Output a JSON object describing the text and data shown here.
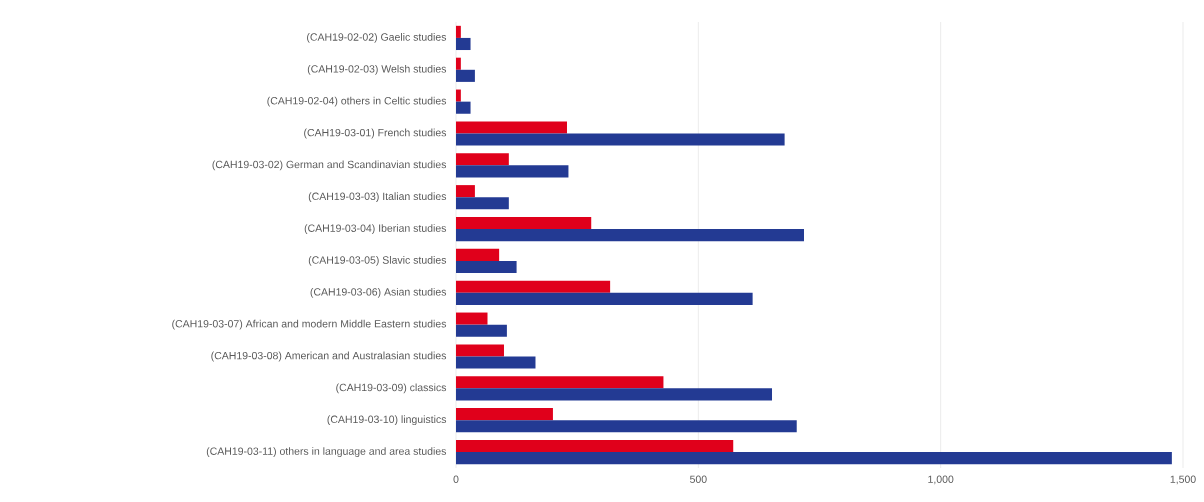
{
  "chart_data": {
    "type": "bar",
    "orientation": "horizontal",
    "categories": [
      "(CAH19-02-02) Gaelic studies",
      "(CAH19-02-03) Welsh studies",
      "(CAH19-02-04) others in Celtic studies",
      "(CAH19-03-01) French studies",
      "(CAH19-03-02) German and Scandinavian studies",
      "(CAH19-03-03) Italian studies",
      "(CAH19-03-04) Iberian studies",
      "(CAH19-03-05) Slavic studies",
      "(CAH19-03-06) Asian studies",
      "(CAH19-03-07) African and modern Middle Eastern studies",
      "(CAH19-03-08) American and Australasian studies",
      "(CAH19-03-09) classics",
      "(CAH19-03-10) linguistics",
      "(CAH19-03-11) others in language and area studies"
    ],
    "series": [
      {
        "color": "#e0001b",
        "values": [
          10,
          10,
          10,
          229,
          109,
          39,
          279,
          89,
          318,
          65,
          99,
          428,
          200,
          572
        ]
      },
      {
        "color": "#233a93",
        "values": [
          30,
          39,
          30,
          678,
          232,
          109,
          718,
          125,
          612,
          105,
          164,
          652,
          703,
          1477
        ]
      }
    ],
    "xlim": [
      0,
      1500
    ],
    "xticks": [
      0,
      500,
      {
        "value": 1000,
        "label": "1,000"
      },
      {
        "value": 1500,
        "label": "1,500"
      }
    ],
    "grid": "x"
  }
}
